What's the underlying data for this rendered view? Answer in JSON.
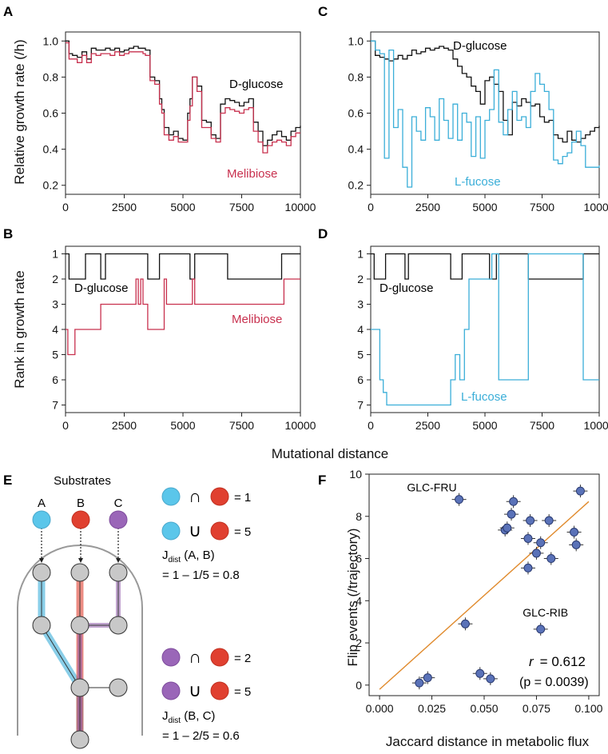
{
  "colors": {
    "dglucose": "#111111",
    "melibiose": "#c8304e",
    "lfucose": "#3aaed8",
    "fit_line": "#e08a2c",
    "point_fill": "#5a72b8",
    "purple": "#8e5aa8",
    "red": "#e04030",
    "gray_node": "#c8c8c8"
  },
  "shared": {
    "xlabel": "Mutational distance",
    "ylabel_top": "Relative growth rate (/h)",
    "ylabel_bottom": "Rank in growth rate"
  },
  "chart_data": [
    {
      "panel": "A",
      "type": "line",
      "ylabel": "Relative growth rate (/h)",
      "xlim": [
        0,
        10000
      ],
      "ylim": [
        0.15,
        1.05
      ],
      "xticks": [
        0,
        2500,
        5000,
        7500,
        10000
      ],
      "yticks": [
        0.2,
        0.4,
        0.6,
        0.8,
        1.0
      ],
      "ytick_labels": [
        "0.2",
        "0.4",
        "0.6",
        "0.8",
        "1.0"
      ],
      "series": [
        {
          "name": "D-glucose",
          "color": "#111111",
          "x": [
            0,
            150,
            300,
            500,
            700,
            900,
            1100,
            1300,
            1500,
            1700,
            1900,
            2100,
            2300,
            2500,
            2700,
            2900,
            3100,
            3300,
            3400,
            3600,
            3800,
            4000,
            4100,
            4200,
            4400,
            4600,
            4800,
            5000,
            5200,
            5300,
            5400,
            5600,
            5800,
            6000,
            6200,
            6400,
            6600,
            6800,
            7000,
            7200,
            7400,
            7600,
            7800,
            8000,
            8200,
            8400,
            8600,
            8800,
            9000,
            9200,
            9400,
            9600,
            9800,
            10000
          ],
          "y": [
            1.0,
            0.93,
            0.92,
            0.91,
            0.94,
            0.9,
            0.96,
            0.95,
            0.95,
            0.96,
            0.95,
            0.96,
            0.94,
            0.95,
            0.96,
            0.97,
            0.96,
            0.96,
            0.95,
            0.8,
            0.78,
            0.68,
            0.62,
            0.52,
            0.48,
            0.5,
            0.46,
            0.45,
            0.6,
            0.68,
            0.8,
            0.75,
            0.56,
            0.55,
            0.48,
            0.46,
            0.65,
            0.68,
            0.67,
            0.66,
            0.64,
            0.66,
            0.68,
            0.55,
            0.5,
            0.42,
            0.45,
            0.48,
            0.5,
            0.47,
            0.45,
            0.5,
            0.52,
            0.53
          ]
        },
        {
          "name": "Melibiose",
          "color": "#c8304e",
          "x": [
            0,
            150,
            300,
            500,
            700,
            900,
            1100,
            1300,
            1500,
            1700,
            1900,
            2100,
            2300,
            2500,
            2700,
            2900,
            3100,
            3300,
            3400,
            3600,
            3800,
            4000,
            4100,
            4200,
            4400,
            4600,
            4800,
            5000,
            5200,
            5300,
            5400,
            5600,
            5800,
            6000,
            6200,
            6400,
            6600,
            6800,
            7000,
            7200,
            7400,
            7600,
            7800,
            8000,
            8200,
            8400,
            8600,
            8800,
            9000,
            9200,
            9400,
            9600,
            9800,
            10000
          ],
          "y": [
            0.99,
            0.9,
            0.9,
            0.88,
            0.92,
            0.88,
            0.93,
            0.92,
            0.93,
            0.93,
            0.92,
            0.94,
            0.92,
            0.93,
            0.94,
            0.94,
            0.94,
            0.93,
            0.92,
            0.78,
            0.76,
            0.65,
            0.6,
            0.48,
            0.45,
            0.47,
            0.44,
            0.44,
            0.56,
            0.64,
            0.8,
            0.72,
            0.52,
            0.52,
            0.46,
            0.44,
            0.6,
            0.63,
            0.62,
            0.61,
            0.6,
            0.62,
            0.63,
            0.5,
            0.44,
            0.38,
            0.42,
            0.44,
            0.45,
            0.44,
            0.42,
            0.47,
            0.49,
            0.49
          ]
        }
      ]
    },
    {
      "panel": "C",
      "type": "line",
      "xlim": [
        0,
        10000
      ],
      "ylim": [
        0.15,
        1.05
      ],
      "xticks": [
        0,
        2500,
        5000,
        7500,
        10000
      ],
      "yticks": [
        0.2,
        0.4,
        0.6,
        0.8,
        1.0
      ],
      "ytick_labels": [
        "0.2",
        "0.4",
        "0.6",
        "0.8",
        "1.0"
      ],
      "series": [
        {
          "name": "D-glucose",
          "color": "#111111",
          "x": [
            0,
            200,
            400,
            600,
            800,
            1000,
            1200,
            1400,
            1600,
            1800,
            2000,
            2200,
            2400,
            2600,
            2800,
            3000,
            3200,
            3400,
            3600,
            3800,
            4000,
            4200,
            4400,
            4600,
            4800,
            5000,
            5200,
            5400,
            5600,
            5800,
            6000,
            6200,
            6400,
            6600,
            6800,
            7000,
            7200,
            7400,
            7600,
            7800,
            8000,
            8200,
            8400,
            8600,
            8800,
            9000,
            9200,
            9400,
            9600,
            9800,
            10000
          ],
          "y": [
            1.0,
            0.92,
            0.91,
            0.9,
            0.89,
            0.9,
            0.92,
            0.9,
            0.92,
            0.95,
            0.93,
            0.94,
            0.96,
            0.95,
            0.96,
            0.97,
            0.96,
            0.95,
            0.9,
            0.86,
            0.82,
            0.8,
            0.75,
            0.72,
            0.65,
            0.78,
            0.8,
            0.76,
            0.72,
            0.56,
            0.48,
            0.66,
            0.64,
            0.68,
            0.66,
            0.64,
            0.65,
            0.58,
            0.55,
            0.56,
            0.48,
            0.46,
            0.44,
            0.5,
            0.45,
            0.44,
            0.46,
            0.48,
            0.5,
            0.52,
            0.53
          ]
        },
        {
          "name": "L-fucose",
          "color": "#3aaed8",
          "x": [
            0,
            200,
            400,
            600,
            800,
            1000,
            1200,
            1400,
            1600,
            1800,
            2000,
            2200,
            2400,
            2600,
            2800,
            3000,
            3200,
            3400,
            3600,
            3800,
            4000,
            4200,
            4400,
            4600,
            4800,
            5000,
            5200,
            5400,
            5600,
            5800,
            6000,
            6200,
            6400,
            6600,
            6800,
            7000,
            7200,
            7400,
            7600,
            7800,
            8000,
            8200,
            8400,
            8600,
            8800,
            9000,
            9200,
            9400,
            9600,
            9800,
            10000
          ],
          "y": [
            1.0,
            0.95,
            0.93,
            0.35,
            0.95,
            0.52,
            0.62,
            0.3,
            0.19,
            0.58,
            0.5,
            0.45,
            0.63,
            0.58,
            0.45,
            0.68,
            0.56,
            0.46,
            0.65,
            0.45,
            0.6,
            0.55,
            0.36,
            0.58,
            0.35,
            0.56,
            0.62,
            0.84,
            0.55,
            0.48,
            0.62,
            0.72,
            0.56,
            0.58,
            0.52,
            0.72,
            0.82,
            0.76,
            0.72,
            0.62,
            0.34,
            0.32,
            0.36,
            0.38,
            0.44,
            0.5,
            0.42,
            0.3,
            0.3,
            0.3,
            0.31
          ]
        }
      ]
    },
    {
      "panel": "B",
      "type": "line",
      "xlim": [
        0,
        10000
      ],
      "ylim": [
        7.3,
        0.7
      ],
      "xticks": [
        0,
        2500,
        5000,
        7500,
        10000
      ],
      "yticks": [
        1,
        2,
        3,
        4,
        5,
        6,
        7
      ],
      "series": [
        {
          "name": "D-glucose",
          "color": "#111111",
          "x": [
            0,
            150,
            150,
            850,
            850,
            1500,
            1500,
            1700,
            1700,
            3500,
            3500,
            4000,
            4000,
            5300,
            5300,
            5500,
            5500,
            6900,
            6900,
            9200,
            9200,
            10000
          ],
          "y": [
            1,
            1,
            2,
            2,
            1,
            1,
            2,
            2,
            1,
            1,
            2,
            2,
            1,
            1,
            2,
            2,
            1,
            1,
            2,
            2,
            1,
            1
          ]
        },
        {
          "name": "Melibiose",
          "color": "#c8304e",
          "x": [
            0,
            100,
            100,
            150,
            150,
            400,
            400,
            1500,
            1500,
            3000,
            3000,
            3100,
            3100,
            3200,
            3200,
            3300,
            3300,
            3500,
            3500,
            4200,
            4200,
            4300,
            4300,
            4400,
            4400,
            5400,
            5400,
            5500,
            5500,
            6900,
            6900,
            9300,
            9300,
            10000
          ],
          "y": [
            4,
            4,
            5,
            5,
            5,
            5,
            4,
            4,
            3,
            3,
            2,
            2,
            3,
            3,
            2,
            2,
            3,
            3,
            4,
            4,
            2,
            2,
            3,
            3,
            3,
            3,
            2,
            2,
            3,
            3,
            3,
            3,
            2,
            2
          ]
        }
      ]
    },
    {
      "panel": "D",
      "type": "line",
      "xlim": [
        0,
        10000
      ],
      "ylim": [
        7.3,
        0.7
      ],
      "xticks": [
        0,
        2500,
        5000,
        7500,
        10000
      ],
      "yticks": [
        1,
        2,
        3,
        4,
        5,
        6,
        7
      ],
      "series": [
        {
          "name": "D-glucose",
          "color": "#111111",
          "x": [
            0,
            150,
            150,
            650,
            650,
            1500,
            1500,
            1650,
            1650,
            3500,
            3500,
            4000,
            4000,
            5200,
            5200,
            5500,
            5500,
            6900,
            6900,
            9300,
            9300,
            10000
          ],
          "y": [
            1,
            1,
            2,
            2,
            1,
            1,
            2,
            2,
            1,
            1,
            2,
            2,
            1,
            1,
            2,
            2,
            1,
            1,
            2,
            2,
            1,
            1
          ]
        },
        {
          "name": "L-fucose",
          "color": "#3aaed8",
          "x": [
            0,
            400,
            400,
            550,
            550,
            700,
            700,
            3500,
            3500,
            3700,
            3700,
            3900,
            3900,
            4100,
            4100,
            4300,
            4300,
            5300,
            5300,
            5600,
            5600,
            6900,
            6900,
            9300,
            9300,
            10000
          ],
          "y": [
            4,
            4,
            6,
            6,
            6.5,
            6.5,
            7,
            7,
            6,
            6,
            5,
            5,
            6,
            6,
            4,
            4,
            2,
            2,
            1,
            1,
            6,
            6,
            1,
            1,
            6,
            6
          ]
        }
      ]
    },
    {
      "panel": "F",
      "type": "scatter",
      "xlabel": "Jaccard distance in metabolic flux",
      "ylabel": "Flip events (/trajectory)",
      "xlim": [
        -0.005,
        0.105
      ],
      "ylim": [
        -0.5,
        10
      ],
      "xticks": [
        0.0,
        0.025,
        0.05,
        0.075,
        0.1
      ],
      "xtick_labels": [
        "0.000",
        "0.025",
        "0.050",
        "0.075",
        "0.100"
      ],
      "yticks": [
        0,
        2,
        4,
        6,
        8,
        10
      ],
      "points": [
        {
          "x": 0.019,
          "y": 0.1
        },
        {
          "x": 0.023,
          "y": 0.35
        },
        {
          "x": 0.038,
          "y": 8.8,
          "label": "GLC-FRU"
        },
        {
          "x": 0.041,
          "y": 2.9
        },
        {
          "x": 0.048,
          "y": 0.55
        },
        {
          "x": 0.053,
          "y": 0.3
        },
        {
          "x": 0.06,
          "y": 7.35
        },
        {
          "x": 0.061,
          "y": 7.45
        },
        {
          "x": 0.063,
          "y": 8.1
        },
        {
          "x": 0.064,
          "y": 8.7
        },
        {
          "x": 0.071,
          "y": 6.95
        },
        {
          "x": 0.071,
          "y": 5.55
        },
        {
          "x": 0.072,
          "y": 7.8
        },
        {
          "x": 0.075,
          "y": 6.25
        },
        {
          "x": 0.077,
          "y": 6.75
        },
        {
          "x": 0.077,
          "y": 2.65,
          "label": "GLC-RIB"
        },
        {
          "x": 0.081,
          "y": 7.8
        },
        {
          "x": 0.082,
          "y": 6.0
        },
        {
          "x": 0.093,
          "y": 7.25
        },
        {
          "x": 0.094,
          "y": 6.65
        },
        {
          "x": 0.096,
          "y": 9.2
        }
      ],
      "fit": {
        "x": [
          0.0,
          0.1
        ],
        "y": [
          -0.2,
          8.7
        ]
      },
      "stat_r_symbol": "r",
      "stat_r_value": "= 0.612",
      "stat_p": "(p = 0.0039)"
    }
  ],
  "panel_e": {
    "title": "Substrates",
    "nodes": [
      "A",
      "B",
      "C"
    ],
    "inter_symbol": "∩",
    "union_symbol": "∪",
    "ab_inter": "= 1",
    "ab_union": "= 5",
    "ab_label_main": "J",
    "ab_label_sub": "dist",
    "ab_label_args": " (A, B)",
    "ab_value": "= 1 – 1/5 = 0.8",
    "bc_inter": "= 2",
    "bc_union": "= 5",
    "bc_label_main": "J",
    "bc_label_sub": "dist",
    "bc_label_args": " (B, C)",
    "bc_value": "= 1 – 2/5 = 0.6"
  },
  "panel_letters": [
    "A",
    "B",
    "C",
    "D",
    "E",
    "F"
  ],
  "series_labels": {
    "a_dglucose": "D-glucose",
    "a_melibiose": "Melibiose",
    "c_dglucose": "D-glucose",
    "c_lfucose": "L-fucose",
    "b_dglucose": "D-glucose",
    "b_melibiose": "Melibiose",
    "d_dglucose": "D-glucose",
    "d_lfucose": "L-fucose"
  }
}
